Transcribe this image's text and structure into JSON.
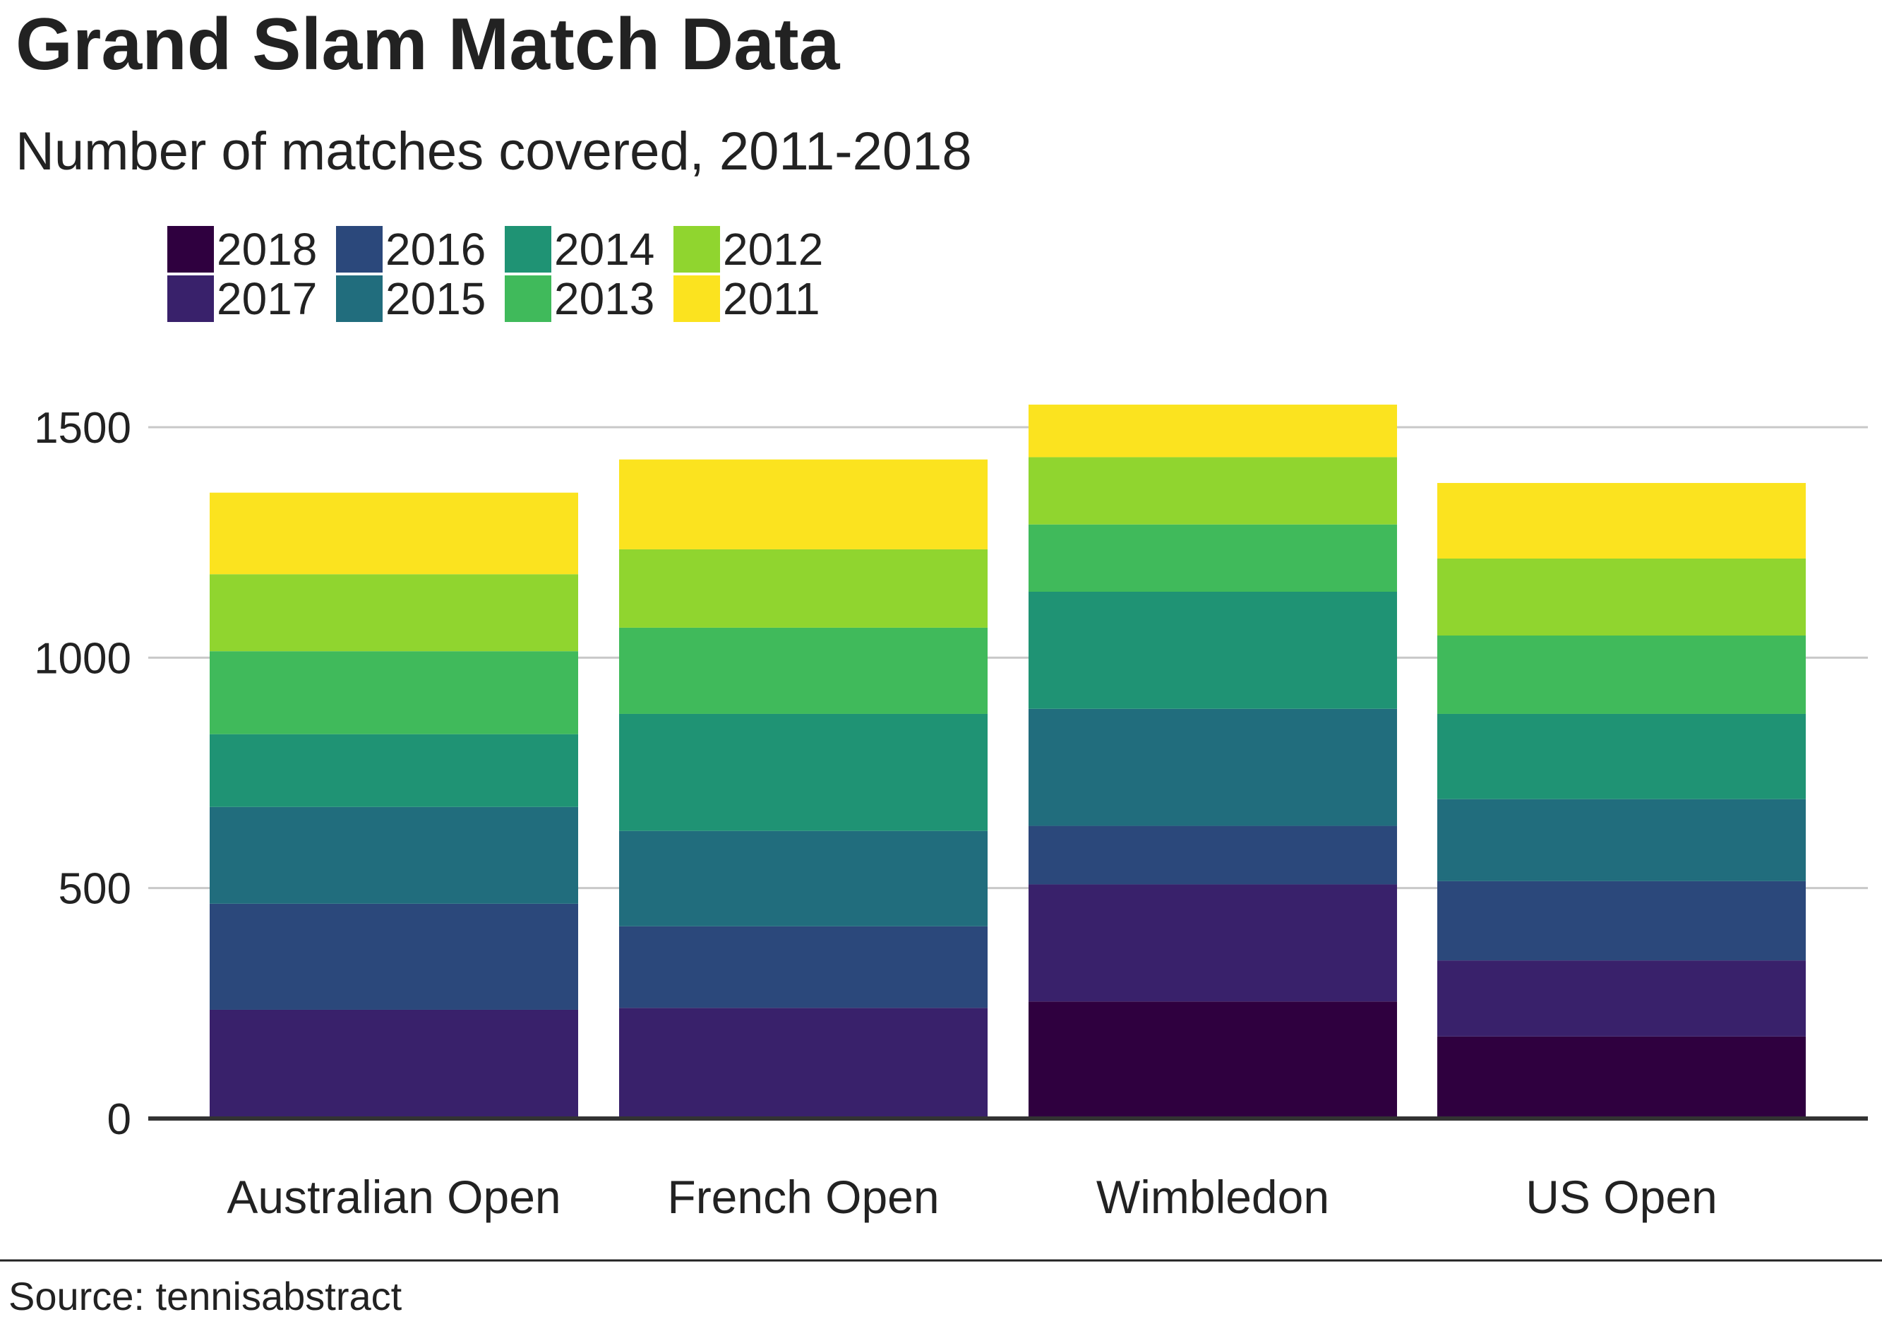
{
  "chart_data": {
    "type": "bar",
    "stacked": true,
    "title": "Grand Slam Match Data",
    "subtitle": "Number of matches covered, 2011-2018",
    "source": "Source: tennisabstract",
    "categories": [
      "Australian Open",
      "French Open",
      "Wimbledon",
      "US Open"
    ],
    "ylim": [
      0,
      1600
    ],
    "yticks": [
      0,
      500,
      1000,
      1500
    ],
    "grid": true,
    "legend_position": "top-left",
    "series": [
      {
        "name": "2018",
        "color": "#2F003F",
        "values": [
          0,
          0,
          254,
          178
        ]
      },
      {
        "name": "2017",
        "color": "#39216B",
        "values": [
          236,
          240,
          254,
          165
        ]
      },
      {
        "name": "2016",
        "color": "#2B487B",
        "values": [
          230,
          177,
          127,
          172
        ]
      },
      {
        "name": "2015",
        "color": "#216D7D",
        "values": [
          210,
          207,
          254,
          178
        ]
      },
      {
        "name": "2014",
        "color": "#1F9374",
        "values": [
          158,
          254,
          254,
          185
        ]
      },
      {
        "name": "2013",
        "color": "#40BA5B",
        "values": [
          180,
          187,
          146,
          170
        ]
      },
      {
        "name": "2012",
        "color": "#90D52F",
        "values": [
          167,
          170,
          146,
          167
        ]
      },
      {
        "name": "2011",
        "color": "#FBE31F",
        "values": [
          177,
          195,
          114,
          164
        ]
      }
    ]
  }
}
